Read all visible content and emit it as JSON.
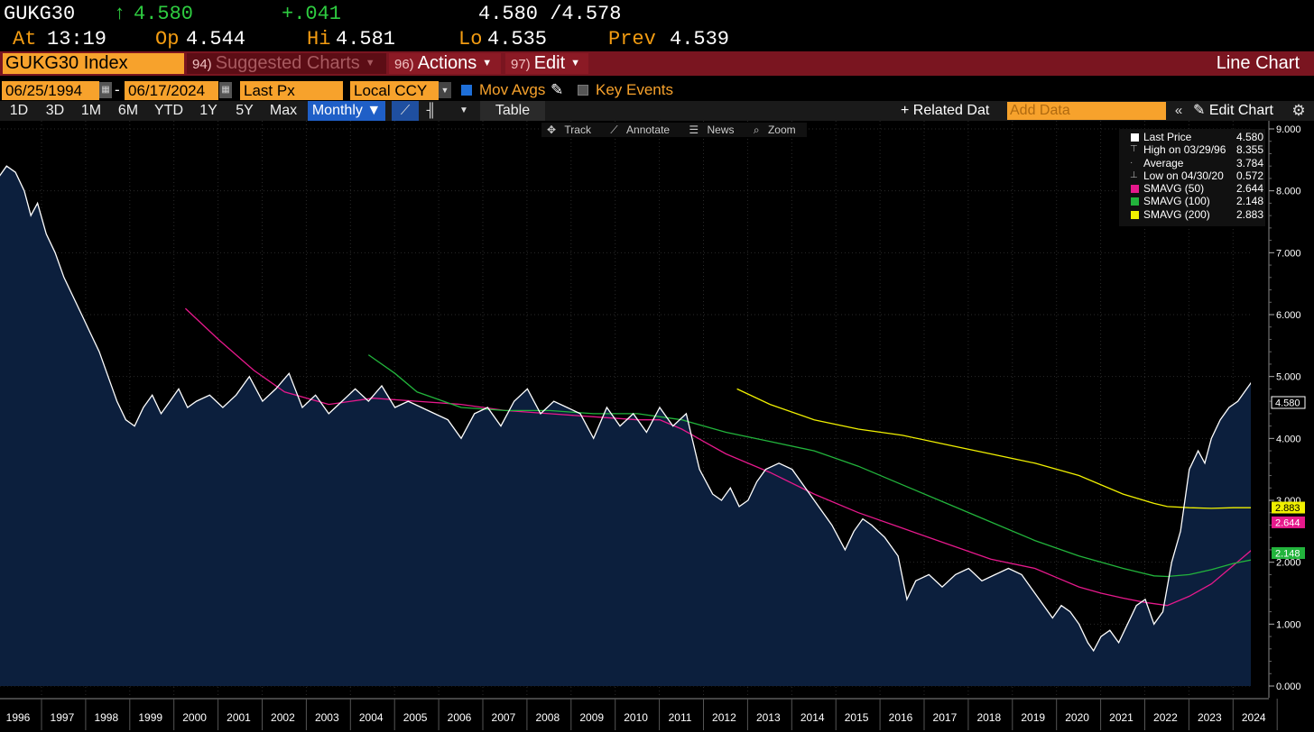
{
  "quote": {
    "ticker": "GUKG30",
    "arrow": "↑",
    "last": "4.580",
    "change": "+.041",
    "bidask": "4.580 /4.578",
    "at_label": "At",
    "time": "13:19",
    "open_label": "Op",
    "open": "4.544",
    "high_label": "Hi",
    "high": "4.581",
    "low_label": "Lo",
    "low": "4.535",
    "prev_label": "Prev",
    "prev": "4.539"
  },
  "titlebar": {
    "security": "GUKG30 Index",
    "suggested_num": "94)",
    "suggested_label": "Suggested Charts",
    "actions_num": "96)",
    "actions_label": "Actions",
    "edit_num": "97)",
    "edit_label": "Edit",
    "chart_type_label": "Line Chart"
  },
  "settings": {
    "start_date": "06/25/1994",
    "end_date": "06/17/2024",
    "field": "Last Px",
    "currency": "Local CCY",
    "mov_avgs_label": "Mov Avgs",
    "key_events_label": "Key Events"
  },
  "rangebar": {
    "ranges": [
      "1D",
      "3D",
      "1M",
      "6M",
      "YTD",
      "1Y",
      "5Y",
      "Max"
    ],
    "periodicity": "Monthly ▼",
    "table_label": "Table",
    "related_label": "+ Related Dat",
    "add_data_placeholder": "Add Data",
    "edit_chart_label": "Edit Chart"
  },
  "tools": {
    "track": "Track",
    "annotate": "Annotate",
    "news": "News",
    "zoom": "Zoom"
  },
  "legend": [
    {
      "name": "Last Price",
      "value": "4.580",
      "color": "#ffffff",
      "glyph": "square"
    },
    {
      "name": "High on 03/29/96",
      "value": "8.355",
      "color": "",
      "glyph": "high"
    },
    {
      "name": "Average",
      "value": "3.784",
      "color": "",
      "glyph": "avg"
    },
    {
      "name": "Low on 04/30/20",
      "value": "0.572",
      "color": "",
      "glyph": "low"
    },
    {
      "name": "SMAVG (50)",
      "value": "2.644",
      "color": "#e6198c",
      "glyph": "square"
    },
    {
      "name": "SMAVG (100)",
      "value": "2.148",
      "color": "#22b43c",
      "glyph": "square"
    },
    {
      "name": "SMAVG (200)",
      "value": "2.883",
      "color": "#f0f000",
      "glyph": "square"
    }
  ],
  "colors": {
    "price_line": "#ffffff",
    "area_fill": "#0c1f3d",
    "sma50": "#e6198c",
    "sma100": "#22b43c",
    "sma200": "#f0f000",
    "accent_orange": "#f7a22c",
    "title_bar": "#7a1520"
  },
  "chart_data": {
    "type": "line",
    "title": "",
    "xlabel": "",
    "ylabel": "",
    "x_ticks": [
      "1996",
      "1997",
      "1998",
      "1999",
      "2000",
      "2001",
      "2002",
      "2003",
      "2004",
      "2005",
      "2006",
      "2007",
      "2008",
      "2009",
      "2010",
      "2011",
      "2012",
      "2013",
      "2014",
      "2015",
      "2016",
      "2017",
      "2018",
      "2019",
      "2020",
      "2021",
      "2022",
      "2023",
      "2024"
    ],
    "y_ticks": [
      "0.000",
      "1.000",
      "2.000",
      "3.000",
      "4.000",
      "5.000",
      "6.000",
      "7.000",
      "8.000",
      "9.000"
    ],
    "ylim": [
      0,
      9
    ],
    "xlim": [
      1995.4,
      2024.8
    ],
    "last_value_labels": [
      {
        "text": "4.580",
        "value": 4.58,
        "color": "#ffffff"
      },
      {
        "text": "2.883",
        "value": 2.883,
        "color": "#f0f000"
      },
      {
        "text": "2.644",
        "value": 2.644,
        "color": "#e6198c"
      },
      {
        "text": "2.148",
        "value": 2.148,
        "color": "#22b43c"
      }
    ],
    "series": [
      {
        "name": "Last Price",
        "x": [
          1995.5,
          1995.7,
          1995.9,
          1996.1,
          1996.25,
          1996.4,
          1996.6,
          1996.8,
          1997.0,
          1997.2,
          1997.4,
          1997.6,
          1997.8,
          1998.0,
          1998.2,
          1998.4,
          1998.6,
          1998.8,
          1999.0,
          1999.2,
          1999.4,
          1999.6,
          1999.8,
          2000.0,
          2000.3,
          2000.6,
          2000.9,
          2001.2,
          2001.5,
          2001.8,
          2002.1,
          2002.4,
          2002.7,
          2003.0,
          2003.3,
          2003.6,
          2003.9,
          2004.2,
          2004.5,
          2004.8,
          2005.1,
          2005.4,
          2005.7,
          2006.0,
          2006.3,
          2006.6,
          2006.9,
          2007.2,
          2007.5,
          2007.8,
          2008.1,
          2008.4,
          2008.7,
          2009.0,
          2009.3,
          2009.6,
          2009.9,
          2010.2,
          2010.5,
          2010.8,
          2011.1,
          2011.4,
          2011.7,
          2011.9,
          2012.1,
          2012.3,
          2012.5,
          2012.7,
          2012.9,
          2013.2,
          2013.5,
          2013.8,
          2014.1,
          2014.4,
          2014.7,
          2014.9,
          2015.1,
          2015.3,
          2015.6,
          2015.9,
          2016.1,
          2016.3,
          2016.6,
          2016.9,
          2017.2,
          2017.5,
          2017.8,
          2018.1,
          2018.4,
          2018.7,
          2019.0,
          2019.2,
          2019.4,
          2019.6,
          2019.8,
          2020.0,
          2020.2,
          2020.33,
          2020.5,
          2020.7,
          2020.9,
          2021.1,
          2021.3,
          2021.5,
          2021.7,
          2021.9,
          2022.1,
          2022.3,
          2022.5,
          2022.7,
          2022.85,
          2023.0,
          2023.2,
          2023.4,
          2023.6,
          2023.8,
          2024.0,
          2024.2,
          2024.45
        ],
        "y": [
          8.2,
          8.4,
          8.3,
          8.0,
          7.6,
          7.8,
          7.3,
          7.0,
          6.6,
          6.3,
          6.0,
          5.7,
          5.4,
          5.0,
          4.6,
          4.3,
          4.2,
          4.5,
          4.7,
          4.4,
          4.6,
          4.8,
          4.5,
          4.6,
          4.7,
          4.5,
          4.7,
          5.0,
          4.6,
          4.8,
          5.05,
          4.5,
          4.7,
          4.4,
          4.6,
          4.8,
          4.6,
          4.85,
          4.5,
          4.6,
          4.5,
          4.4,
          4.3,
          4.0,
          4.4,
          4.5,
          4.2,
          4.6,
          4.8,
          4.4,
          4.6,
          4.5,
          4.4,
          4.0,
          4.5,
          4.2,
          4.4,
          4.1,
          4.5,
          4.2,
          4.4,
          3.5,
          3.1,
          3.0,
          3.2,
          2.9,
          3.0,
          3.3,
          3.5,
          3.6,
          3.5,
          3.2,
          2.9,
          2.6,
          2.2,
          2.5,
          2.7,
          2.6,
          2.4,
          2.1,
          1.4,
          1.7,
          1.8,
          1.6,
          1.8,
          1.9,
          1.7,
          1.8,
          1.9,
          1.8,
          1.5,
          1.3,
          1.1,
          1.3,
          1.2,
          1.0,
          0.7,
          0.57,
          0.8,
          0.9,
          0.7,
          1.0,
          1.3,
          1.4,
          1.0,
          1.2,
          2.0,
          2.5,
          3.5,
          3.8,
          3.6,
          4.0,
          4.3,
          4.5,
          4.6,
          4.8,
          5.0,
          4.3,
          4.58
        ]
      },
      {
        "name": "SMAVG (50)",
        "x": [
          1999.75,
          2000.5,
          2001.3,
          2002.0,
          2003.0,
          2004.0,
          2005.0,
          2006.0,
          2007.0,
          2008.0,
          2009.0,
          2010.0,
          2010.5,
          2011.0,
          2011.5,
          2012.0,
          2013.0,
          2014.0,
          2015.0,
          2016.0,
          2017.0,
          2018.0,
          2019.0,
          2019.5,
          2020.0,
          2020.5,
          2021.0,
          2021.5,
          2022.0,
          2022.5,
          2023.0,
          2023.5,
          2024.0,
          2024.45
        ],
        "y": [
          6.1,
          5.6,
          5.1,
          4.75,
          4.55,
          4.65,
          4.6,
          4.55,
          4.45,
          4.4,
          4.35,
          4.3,
          4.3,
          4.15,
          3.95,
          3.75,
          3.45,
          3.1,
          2.8,
          2.55,
          2.3,
          2.05,
          1.9,
          1.75,
          1.6,
          1.5,
          1.42,
          1.35,
          1.3,
          1.45,
          1.65,
          1.95,
          2.25,
          2.644
        ]
      },
      {
        "name": "SMAVG (100)",
        "x": [
          2003.9,
          2004.5,
          2005.0,
          2006.0,
          2007.0,
          2008.0,
          2009.0,
          2010.0,
          2011.0,
          2012.0,
          2013.0,
          2014.0,
          2015.0,
          2016.0,
          2017.0,
          2018.0,
          2019.0,
          2020.0,
          2021.0,
          2021.7,
          2022.0,
          2022.5,
          2023.0,
          2023.5,
          2024.0,
          2024.45
        ],
        "y": [
          5.35,
          5.05,
          4.75,
          4.5,
          4.45,
          4.45,
          4.4,
          4.4,
          4.3,
          4.1,
          3.95,
          3.8,
          3.55,
          3.25,
          2.95,
          2.65,
          2.35,
          2.1,
          1.9,
          1.78,
          1.77,
          1.8,
          1.88,
          1.98,
          2.05,
          2.148
        ]
      },
      {
        "name": "SMAVG (200)",
        "x": [
          2012.25,
          2013.0,
          2014.0,
          2015.0,
          2016.0,
          2017.0,
          2018.0,
          2019.0,
          2020.0,
          2021.0,
          2021.7,
          2022.0,
          2022.5,
          2023.0,
          2023.5,
          2024.0,
          2024.45
        ],
        "y": [
          4.8,
          4.55,
          4.3,
          4.15,
          4.05,
          3.9,
          3.75,
          3.6,
          3.4,
          3.1,
          2.95,
          2.9,
          2.88,
          2.87,
          2.88,
          2.88,
          2.883
        ]
      }
    ]
  }
}
